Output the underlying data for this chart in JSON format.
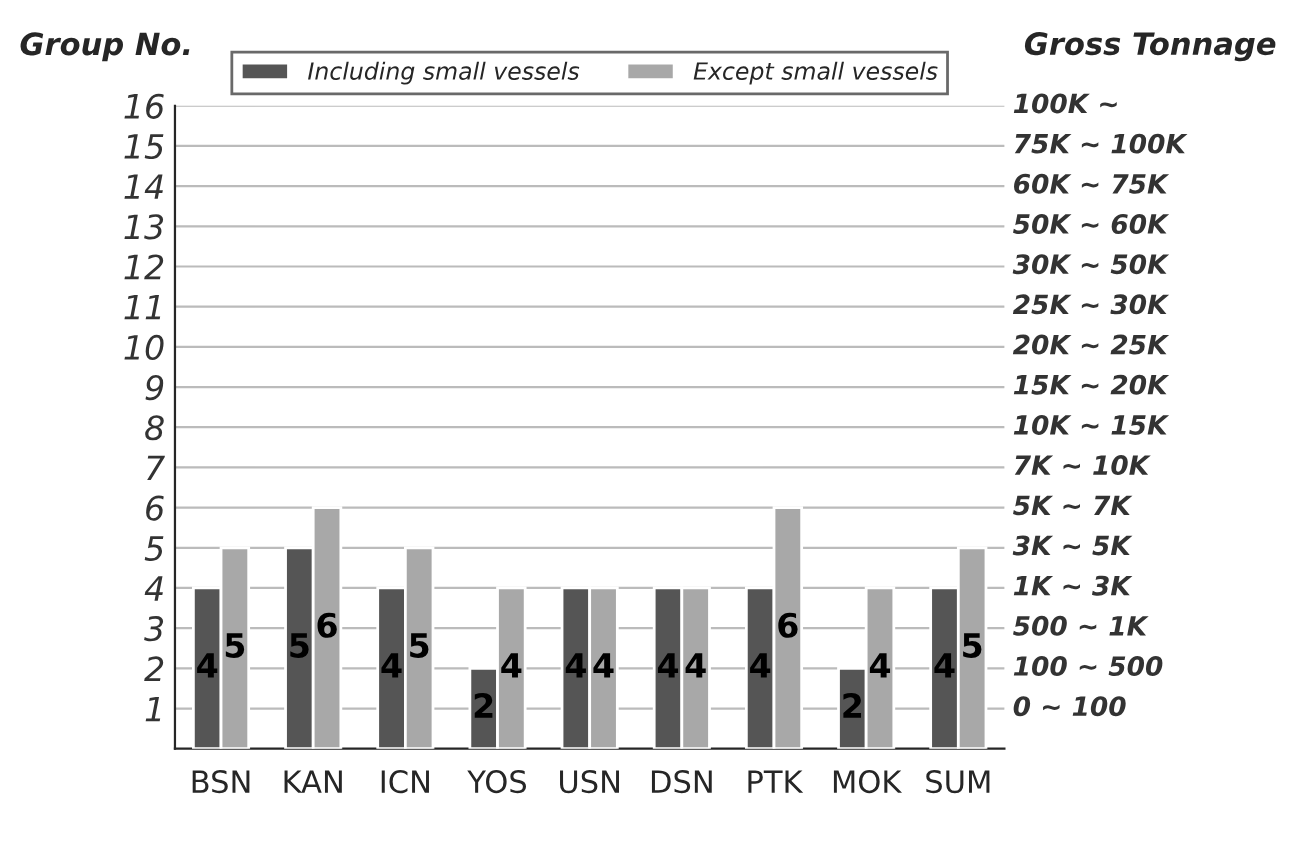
{
  "chart_data": {
    "type": "bar",
    "ylabel": "Group No.",
    "y2label": "Gross Tonnage",
    "categories": [
      "BSN",
      "KAN",
      "ICN",
      "YOS",
      "USN",
      "DSN",
      "PTK",
      "MOK",
      "SUM"
    ],
    "series": [
      {
        "name": "Including small vessels",
        "color": "#555555",
        "values": [
          4,
          5,
          4,
          2,
          4,
          4,
          4,
          2,
          4
        ]
      },
      {
        "name": "Except small vessels",
        "color": "#a8a8a8",
        "values": [
          5,
          6,
          5,
          4,
          4,
          4,
          6,
          4,
          5
        ]
      }
    ],
    "ylim": [
      0,
      16
    ],
    "yticks": [
      1,
      2,
      3,
      4,
      5,
      6,
      7,
      8,
      9,
      10,
      11,
      12,
      13,
      14,
      15,
      16
    ],
    "annotations": [
      "0 ~ 100",
      "100 ~ 500",
      "500 ~ 1K",
      "1K ~ 3K",
      "3K ~ 5K",
      "5K ~ 7K",
      "7K ~ 10K",
      "10K ~ 15K",
      "15K ~ 20K",
      "20K ~ 25K",
      "25K ~ 30K",
      "30K ~ 50K",
      "50K ~ 60K",
      "60K ~ 75K",
      "75K ~ 100K",
      "100K ~"
    ],
    "grid": "y",
    "legend": "top",
    "data_labels": true
  }
}
